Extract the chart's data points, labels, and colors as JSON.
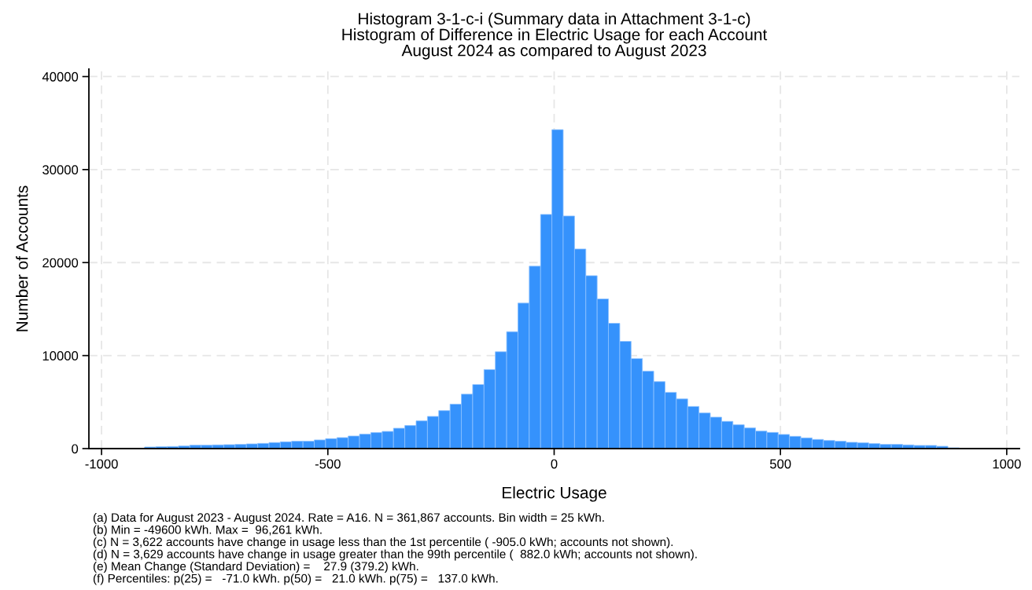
{
  "chart_data": {
    "type": "histogram",
    "title": "Histogram 3-1-c-i (Summary data in Attachment 3-1-c)\nHistogram of Difference in Electric Usage for each Account\nAugust 2024 as compared to August 2023",
    "xlabel": "Electric Usage",
    "ylabel": "Number of Accounts",
    "bins": [
      -905,
      -880,
      -855,
      -830,
      -805,
      -780,
      -755,
      -730,
      -705,
      -680,
      -655,
      -630,
      -605,
      -580,
      -555,
      -530,
      -505,
      -480,
      -455,
      -430,
      -405,
      -380,
      -355,
      -330,
      -305,
      -280,
      -255,
      -230,
      -205,
      -180,
      -155,
      -130,
      -105,
      -80,
      -55,
      -30,
      -5,
      20,
      45,
      70,
      95,
      120,
      145,
      170,
      195,
      220,
      245,
      270,
      295,
      320,
      345,
      370,
      395,
      420,
      445,
      470,
      495,
      520,
      545,
      570,
      595,
      620,
      645,
      670,
      695,
      720,
      745,
      770,
      795,
      820,
      845,
      870,
      895
    ],
    "values": [
      170,
      200,
      225,
      280,
      365,
      365,
      395,
      420,
      450,
      505,
      560,
      650,
      730,
      790,
      790,
      930,
      1070,
      1180,
      1350,
      1550,
      1720,
      1850,
      2190,
      2480,
      2980,
      3460,
      4080,
      4780,
      5850,
      6890,
      8500,
      10410,
      12570,
      15640,
      19610,
      25180,
      34290,
      25010,
      21460,
      18590,
      16090,
      13470,
      11530,
      9680,
      8330,
      7200,
      6050,
      5340,
      4530,
      3830,
      3380,
      2930,
      2560,
      2220,
      1880,
      1740,
      1520,
      1320,
      1150,
      985,
      870,
      790,
      675,
      620,
      535,
      450,
      450,
      395,
      340,
      340,
      250,
      85
    ],
    "color": "#3592fc",
    "xlim": [
      -1028,
      1028
    ],
    "xticks": [
      -1000,
      -500,
      0,
      500,
      1000
    ],
    "ylim": [
      0,
      40800
    ],
    "yticks": [
      0,
      10000,
      20000,
      30000,
      40000
    ],
    "grid": true,
    "annotations": [
      "(a) Data for August 2023 - August 2024. Rate = A16. N = 361,867 accounts. Bin width = 25 kWh.",
      "(b) Min = -49600 kWh. Max =  96,261 kWh.",
      "(c) N = 3,622 accounts have change in usage less than the 1st percentile ( -905.0 kWh; accounts not shown).",
      "(d) N = 3,629 accounts have change in usage greater than the 99th percentile (  882.0 kWh; accounts not shown).",
      "(e) Mean Change (Standard Deviation) =    27.9 (379.2) kWh.",
      "(f) Percentiles: p(25) =   -71.0 kWh. p(50) =   21.0 kWh. p(75) =   137.0 kWh."
    ]
  }
}
